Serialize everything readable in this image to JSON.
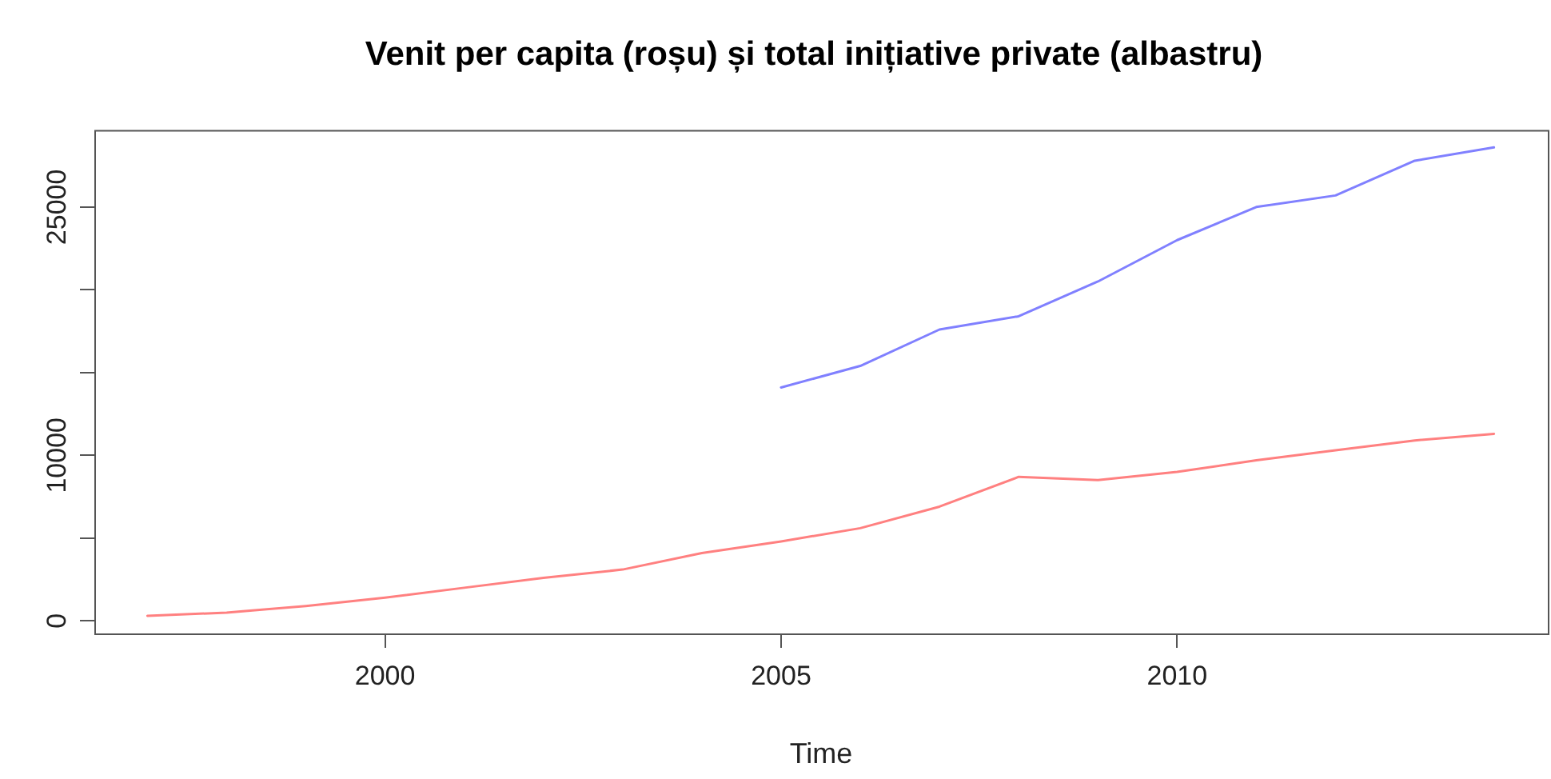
{
  "chart_data": {
    "type": "line",
    "title": "Venit per capita (roșu) și total inițiative private (albastru)",
    "xlabel": "Time",
    "x": [
      1997,
      1998,
      1999,
      2000,
      2001,
      2002,
      2003,
      2004,
      2005,
      2006,
      2007,
      2008,
      2009,
      2010,
      2011,
      2012,
      2013,
      2014
    ],
    "series": [
      {
        "color": "#ff8080",
        "values": [
          300,
          500,
          900,
          1400,
          2000,
          2600,
          3100,
          4100,
          4800,
          5600,
          6900,
          8700,
          8500,
          9000,
          9700,
          10300,
          10900,
          11300
        ]
      },
      {
        "color": "#8080ff",
        "values": [
          null,
          null,
          null,
          null,
          null,
          null,
          null,
          null,
          14100,
          15400,
          17600,
          18400,
          20500,
          23000,
          25000,
          25700,
          27800,
          28600
        ]
      }
    ],
    "xlim": [
      1996.33,
      2014.68
    ],
    "xticks": [
      2000,
      2005,
      2010
    ],
    "ylim": [
      -760,
      29660
    ],
    "yticks": [
      0,
      {
        "value": 5000,
        "label": null
      },
      10000,
      {
        "value": 15000,
        "label": null
      },
      {
        "value": 20000,
        "label": null
      },
      25000
    ],
    "grid": false,
    "legend": false,
    "marker": "none",
    "line_style": "solid"
  }
}
